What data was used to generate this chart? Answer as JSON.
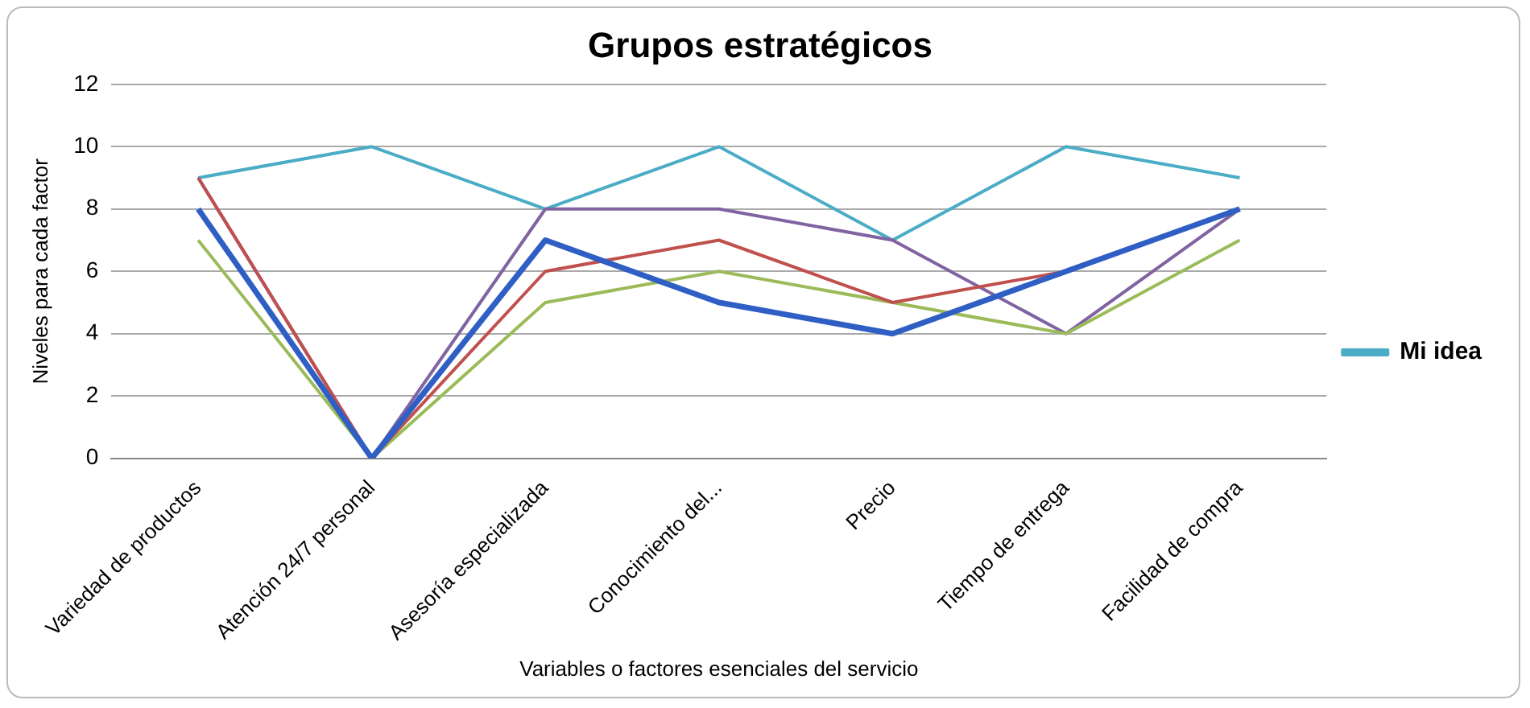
{
  "chart_data": {
    "type": "line",
    "title": "Grupos estratégicos",
    "xlabel": "Variables o factores esenciales del servicio",
    "ylabel": "Niveles para cada factor",
    "categories": [
      "Variedad de productos",
      "Atención 24/7 personal",
      "Asesoría especializada",
      "Conocimiento del...",
      "Precio",
      "Tiempo de entrega",
      "Facilidad de compra"
    ],
    "series": [
      {
        "color": "#2f5fc4",
        "values": [
          8,
          0,
          7,
          5,
          4,
          6,
          8
        ]
      },
      {
        "color": "#c0504d",
        "values": [
          9,
          0,
          6,
          7,
          5,
          6,
          8
        ]
      },
      {
        "color": "#9bbb59",
        "values": [
          7,
          0,
          5,
          6,
          5,
          4,
          7
        ]
      },
      {
        "color": "#8064a2",
        "values": [
          9,
          0,
          8,
          8,
          7,
          4,
          8
        ]
      },
      {
        "name": "Mi idea",
        "color": "#4bacc6",
        "values": [
          9,
          10,
          8,
          10,
          7,
          10,
          9
        ]
      }
    ],
    "ylim": [
      0,
      12
    ],
    "yticks": [
      0,
      2,
      4,
      6,
      8,
      10,
      12
    ],
    "grid": "y",
    "legend": "right",
    "marker": "none",
    "line_style": "solid"
  }
}
